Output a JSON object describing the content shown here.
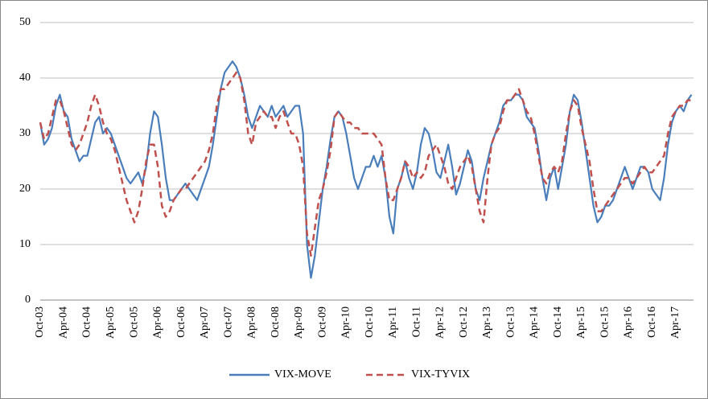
{
  "chart_data": {
    "type": "line",
    "categories": [
      "Oct-03",
      null,
      null,
      null,
      null,
      null,
      "Apr-04",
      null,
      null,
      null,
      null,
      null,
      "Oct-04",
      null,
      null,
      null,
      null,
      null,
      "Apr-05",
      null,
      null,
      null,
      null,
      null,
      "Oct-05",
      null,
      null,
      null,
      null,
      null,
      "Apr-06",
      null,
      null,
      null,
      null,
      null,
      "Oct-06",
      null,
      null,
      null,
      null,
      null,
      "Apr-07",
      null,
      null,
      null,
      null,
      null,
      "Oct-07",
      null,
      null,
      null,
      null,
      null,
      "Apr-08",
      null,
      null,
      null,
      null,
      null,
      "Oct-08",
      null,
      null,
      null,
      null,
      null,
      "Apr-09",
      null,
      null,
      null,
      null,
      null,
      "Oct-09",
      null,
      null,
      null,
      null,
      null,
      "Apr-10",
      null,
      null,
      null,
      null,
      null,
      "Oct-10",
      null,
      null,
      null,
      null,
      null,
      "Apr-11",
      null,
      null,
      null,
      null,
      null,
      "Oct-11",
      null,
      null,
      null,
      null,
      null,
      "Apr-12",
      null,
      null,
      null,
      null,
      null,
      "Oct-12",
      null,
      null,
      null,
      null,
      null,
      "Apr-13",
      null,
      null,
      null,
      null,
      null,
      "Oct-13",
      null,
      null,
      null,
      null,
      null,
      "Apr-14",
      null,
      null,
      null,
      null,
      null,
      "Oct-14",
      null,
      null,
      null,
      null,
      null,
      "Apr-15",
      null,
      null,
      null,
      null,
      null,
      "Oct-15",
      null,
      null,
      null,
      null,
      null,
      "Apr-16",
      null,
      null,
      null,
      null,
      null,
      "Oct-16",
      null,
      null,
      null,
      null,
      null,
      "Apr-17",
      null,
      null,
      null,
      null
    ],
    "series": [
      {
        "name": "VIX-MOVE",
        "color": "#4a7ebb",
        "dashed": false,
        "values": [
          32,
          28,
          29,
          31,
          35,
          37,
          34,
          33,
          29,
          27,
          25,
          26,
          26,
          29,
          32,
          33,
          30,
          31,
          30,
          28,
          26,
          24,
          22,
          21,
          22,
          23,
          21,
          24,
          30,
          34,
          33,
          28,
          22,
          18,
          18,
          19,
          20,
          21,
          20,
          19,
          18,
          20,
          22,
          24,
          28,
          33,
          38,
          41,
          42,
          43,
          42,
          40,
          37,
          33,
          31,
          33,
          35,
          34,
          33,
          35,
          33,
          34,
          35,
          33,
          34,
          35,
          35,
          30,
          10,
          4,
          8,
          14,
          20,
          24,
          29,
          33,
          34,
          33,
          30,
          26,
          22,
          20,
          22,
          24,
          24,
          26,
          24,
          26,
          22,
          15,
          12,
          20,
          22,
          25,
          22,
          20,
          23,
          28,
          31,
          30,
          27,
          23,
          22,
          25,
          28,
          24,
          19,
          21,
          24,
          27,
          25,
          20,
          18,
          22,
          25,
          28,
          30,
          32,
          35,
          36,
          36,
          37,
          37,
          36,
          33,
          32,
          31,
          27,
          22,
          18,
          22,
          24,
          20,
          24,
          28,
          34,
          37,
          36,
          32,
          27,
          22,
          17,
          14,
          15,
          17,
          17,
          18,
          20,
          22,
          24,
          22,
          20,
          22,
          24,
          24,
          23,
          20,
          19,
          18,
          22,
          28,
          32,
          34,
          35,
          34,
          36,
          37
        ]
      },
      {
        "name": "VIX-TYVIX",
        "color": "#c0504d",
        "dashed": true,
        "values": [
          32,
          29,
          30,
          33,
          36,
          36,
          34,
          31,
          28,
          27,
          28,
          30,
          32,
          35,
          37,
          35,
          32,
          30,
          29,
          27,
          24,
          21,
          18,
          16,
          14,
          16,
          20,
          25,
          28,
          28,
          24,
          17,
          15,
          16,
          18,
          19,
          20,
          20,
          21,
          22,
          23,
          24,
          25,
          27,
          30,
          35,
          38,
          38,
          39,
          40,
          41,
          40,
          36,
          30,
          28,
          32,
          33,
          34,
          33,
          33,
          31,
          33,
          34,
          32,
          30,
          30,
          28,
          24,
          12,
          8,
          13,
          18,
          20,
          23,
          27,
          33,
          34,
          33,
          32,
          32,
          31,
          31,
          30,
          30,
          30,
          30,
          29,
          28,
          22,
          18,
          18,
          20,
          22,
          25,
          24,
          22,
          23,
          22,
          23,
          26,
          27,
          28,
          26,
          24,
          21,
          20,
          22,
          24,
          25,
          26,
          24,
          20,
          16,
          14,
          22,
          28,
          30,
          31,
          34,
          36,
          36,
          37,
          38,
          36,
          34,
          33,
          30,
          26,
          22,
          21,
          23,
          24,
          23,
          25,
          30,
          34,
          36,
          35,
          31,
          28,
          25,
          20,
          16,
          16,
          17,
          18,
          19,
          20,
          21,
          22,
          22,
          21,
          22,
          23,
          24,
          23,
          23,
          24,
          25,
          26,
          30,
          33,
          34,
          35,
          35,
          36,
          36
        ]
      }
    ],
    "ylim": [
      0,
      50
    ],
    "yticks": [
      0,
      10,
      20,
      30,
      40,
      50
    ],
    "grid": true,
    "legend": "bottom"
  }
}
